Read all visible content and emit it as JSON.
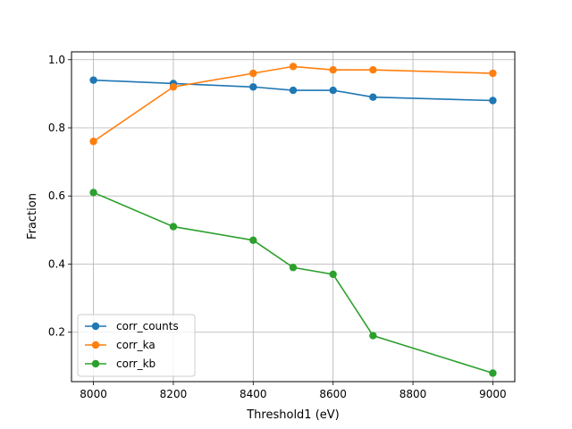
{
  "chart_data": {
    "type": "line",
    "title": "",
    "xlabel": "Threshold1 (eV)",
    "ylabel": "Fraction",
    "xlim": [
      7945,
      9055
    ],
    "ylim": [
      0.055,
      1.023
    ],
    "xticks": [
      8000,
      8200,
      8400,
      8600,
      8800,
      9000
    ],
    "yticks": [
      0.2,
      0.4,
      0.6,
      0.8,
      1.0
    ],
    "ytick_labels": [
      "0.2",
      "0.4",
      "0.6",
      "0.8",
      "1.0"
    ],
    "grid": true,
    "legend_position": "lower-left",
    "x": [
      8000,
      8200,
      8400,
      8500,
      8600,
      8700,
      9000
    ],
    "series": [
      {
        "name": "corr_counts",
        "color": "#1f77b4",
        "values": [
          0.94,
          0.93,
          0.92,
          0.91,
          0.91,
          0.89,
          0.88
        ]
      },
      {
        "name": "corr_ka",
        "color": "#ff7f0e",
        "values": [
          0.76,
          0.92,
          0.96,
          0.98,
          0.97,
          0.97,
          0.96
        ]
      },
      {
        "name": "corr_kb",
        "color": "#2ca02c",
        "values": [
          0.61,
          0.51,
          0.47,
          0.39,
          0.37,
          0.19,
          0.08
        ]
      }
    ]
  }
}
